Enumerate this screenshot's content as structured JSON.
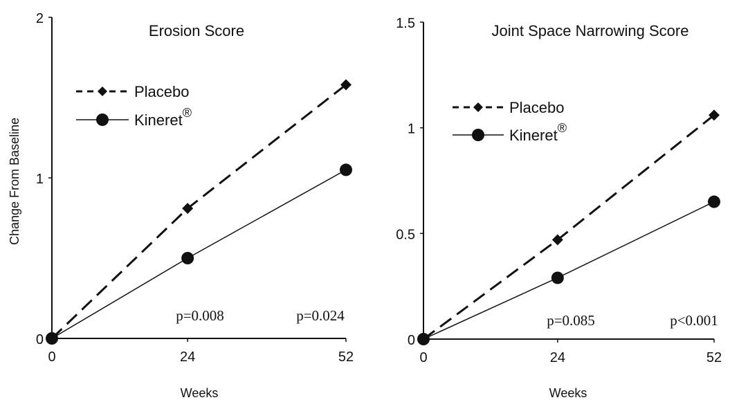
{
  "chart_data": [
    {
      "type": "line",
      "title": "Erosion Score",
      "ylabel": "Change From Baseline",
      "xlabel": "Weeks",
      "x": [
        0,
        24,
        52
      ],
      "x_ticks": [
        "0",
        "24",
        "52"
      ],
      "y_ticks": [
        "0",
        "1",
        "2"
      ],
      "xlim": [
        0,
        52
      ],
      "ylim": [
        0,
        2
      ],
      "grid": false,
      "legend_position": "upper-left",
      "series": [
        {
          "name": "Placebo",
          "values": [
            0,
            0.81,
            1.58
          ],
          "line_style": "dashed",
          "marker": "diamond"
        },
        {
          "name": "Kineret",
          "superscript": "®",
          "values": [
            0,
            0.5,
            1.05
          ],
          "line_style": "solid",
          "marker": "circle"
        }
      ],
      "annotations": [
        "p=0.008",
        "p=0.024"
      ]
    },
    {
      "type": "line",
      "title": "Joint Space Narrowing Score",
      "ylabel": "",
      "xlabel": "Weeks",
      "x": [
        0,
        24,
        52
      ],
      "x_ticks": [
        "0",
        "24",
        "52"
      ],
      "y_ticks": [
        "0",
        "0.5",
        "1",
        "1.5"
      ],
      "xlim": [
        0,
        52
      ],
      "ylim": [
        0,
        1.5
      ],
      "grid": false,
      "legend_position": "upper-left",
      "series": [
        {
          "name": "Placebo",
          "values": [
            0,
            0.47,
            1.06
          ],
          "line_style": "dashed",
          "marker": "diamond"
        },
        {
          "name": "Kineret",
          "superscript": "®",
          "values": [
            0,
            0.29,
            0.65
          ],
          "line_style": "solid",
          "marker": "circle"
        }
      ],
      "annotations": [
        "p=0.085",
        "p<0.001"
      ]
    }
  ],
  "colors": {
    "ink": "#111111",
    "background": "#ffffff"
  }
}
